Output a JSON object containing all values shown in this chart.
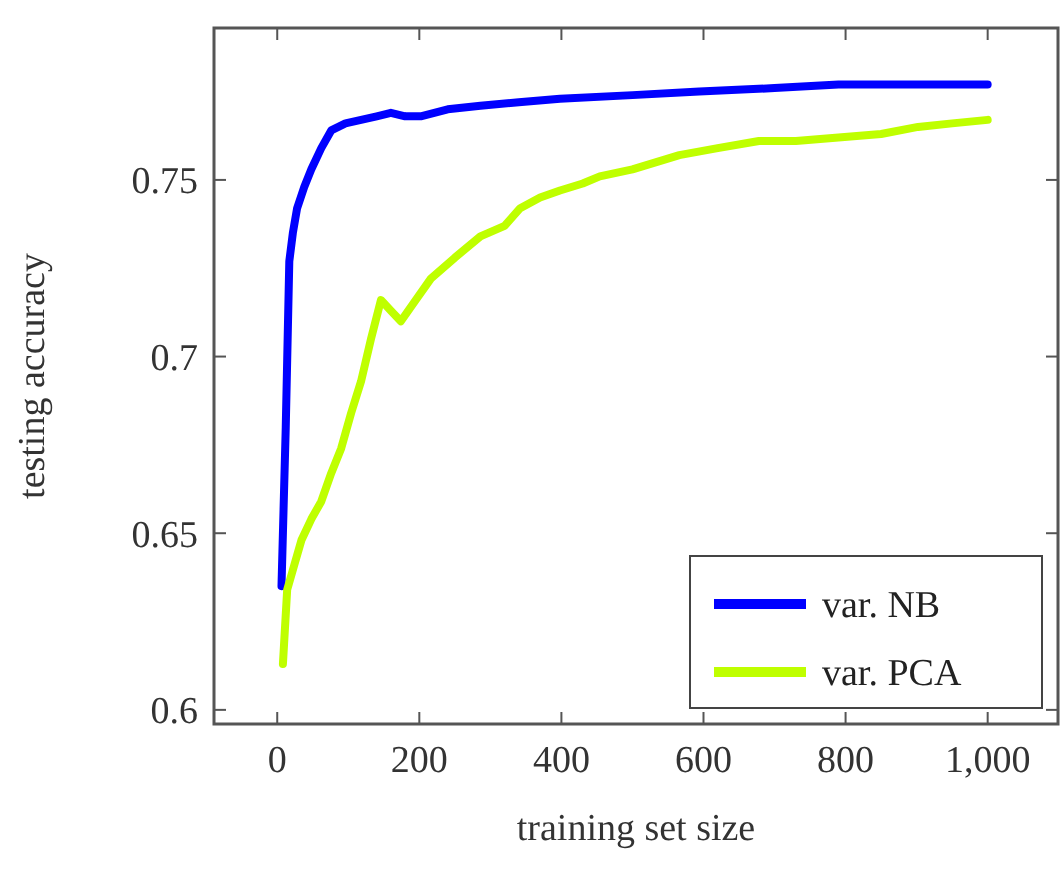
{
  "chart_data": {
    "type": "line",
    "xlabel": "training set size",
    "ylabel": "testing accuracy",
    "xlim": [
      -89,
      1099
    ],
    "ylim": [
      0.596,
      0.793
    ],
    "xticks": [
      0,
      200,
      400,
      600,
      800,
      {
        "value": 1000,
        "label": "1,000"
      }
    ],
    "yticks": [
      0.6,
      0.65,
      0.7,
      0.75
    ],
    "legend": "bottom right",
    "grid": false,
    "series": [
      {
        "name": "var. NB",
        "color": "#0000ff",
        "x": [
          6,
          12,
          17,
          22,
          28,
          38,
          48,
          62,
          76,
          96,
          118,
          140,
          160,
          180,
          202,
          240,
          286,
          340,
          398,
          500,
          594,
          700,
          790,
          900,
          1000
        ],
        "values": [
          0.635,
          0.68,
          0.727,
          0.735,
          0.742,
          0.748,
          0.753,
          0.759,
          0.764,
          0.766,
          0.767,
          0.768,
          0.769,
          0.768,
          0.768,
          0.77,
          0.771,
          0.772,
          0.773,
          0.774,
          0.775,
          0.776,
          0.777,
          0.777,
          0.777
        ]
      },
      {
        "name": "var. PCA",
        "color": "#bfff00",
        "x": [
          8,
          14,
          24,
          34,
          48,
          62,
          76,
          90,
          104,
          118,
          132,
          146,
          160,
          174,
          195,
          216,
          250,
          286,
          320,
          342,
          370,
          398,
          430,
          454,
          500,
          566,
          620,
          678,
          730,
          790,
          850,
          902,
          950,
          1000
        ],
        "values": [
          0.613,
          0.634,
          0.641,
          0.648,
          0.654,
          0.659,
          0.667,
          0.674,
          0.684,
          0.693,
          0.705,
          0.716,
          0.713,
          0.71,
          0.716,
          0.722,
          0.728,
          0.734,
          0.737,
          0.742,
          0.745,
          0.747,
          0.749,
          0.751,
          0.753,
          0.757,
          0.759,
          0.761,
          0.761,
          0.762,
          0.763,
          0.765,
          0.766,
          0.767
        ]
      }
    ]
  }
}
